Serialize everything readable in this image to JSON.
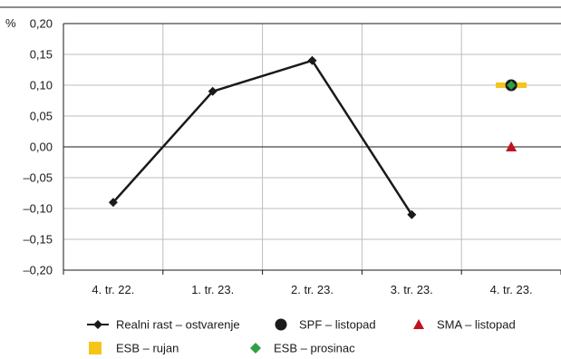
{
  "chart_data": {
    "type": "line",
    "unit_label": "%",
    "categories": [
      "4. tr. 22.",
      "1. tr. 23.",
      "2. tr. 23.",
      "3. tr. 23.",
      "4. tr. 23."
    ],
    "ylim": [
      -0.2,
      0.2
    ],
    "yticks": [
      0.2,
      0.15,
      0.1,
      0.05,
      0.0,
      -0.05,
      -0.1,
      -0.15,
      -0.2
    ],
    "ytick_labels": [
      "0,20",
      "0,15",
      "0,10",
      "0,05",
      "0,00",
      "–0,05",
      "–0,10",
      "–0,15",
      "–0,20"
    ],
    "grid": true,
    "series": [
      {
        "name": "Realni rast – ostvarenje",
        "kind": "line-diamond",
        "color": "#1a1a1a",
        "values": [
          -0.09,
          0.09,
          0.14,
          -0.11,
          null
        ]
      },
      {
        "name": "SPF – listopad",
        "kind": "circle",
        "color": "#1a1a1a",
        "values": [
          null,
          null,
          null,
          null,
          0.1
        ]
      },
      {
        "name": "SMA – listopad",
        "kind": "triangle",
        "color": "#c0141e",
        "values": [
          null,
          null,
          null,
          null,
          0.0
        ]
      },
      {
        "name": "ESB – rujan",
        "kind": "bar-marker",
        "color": "#f5c518",
        "values": [
          null,
          null,
          null,
          null,
          0.1
        ]
      },
      {
        "name": "ESB – prosinac",
        "kind": "diamond",
        "color": "#2ea043",
        "values": [
          null,
          null,
          null,
          null,
          0.1
        ]
      }
    ],
    "legend_position": "bottom"
  }
}
